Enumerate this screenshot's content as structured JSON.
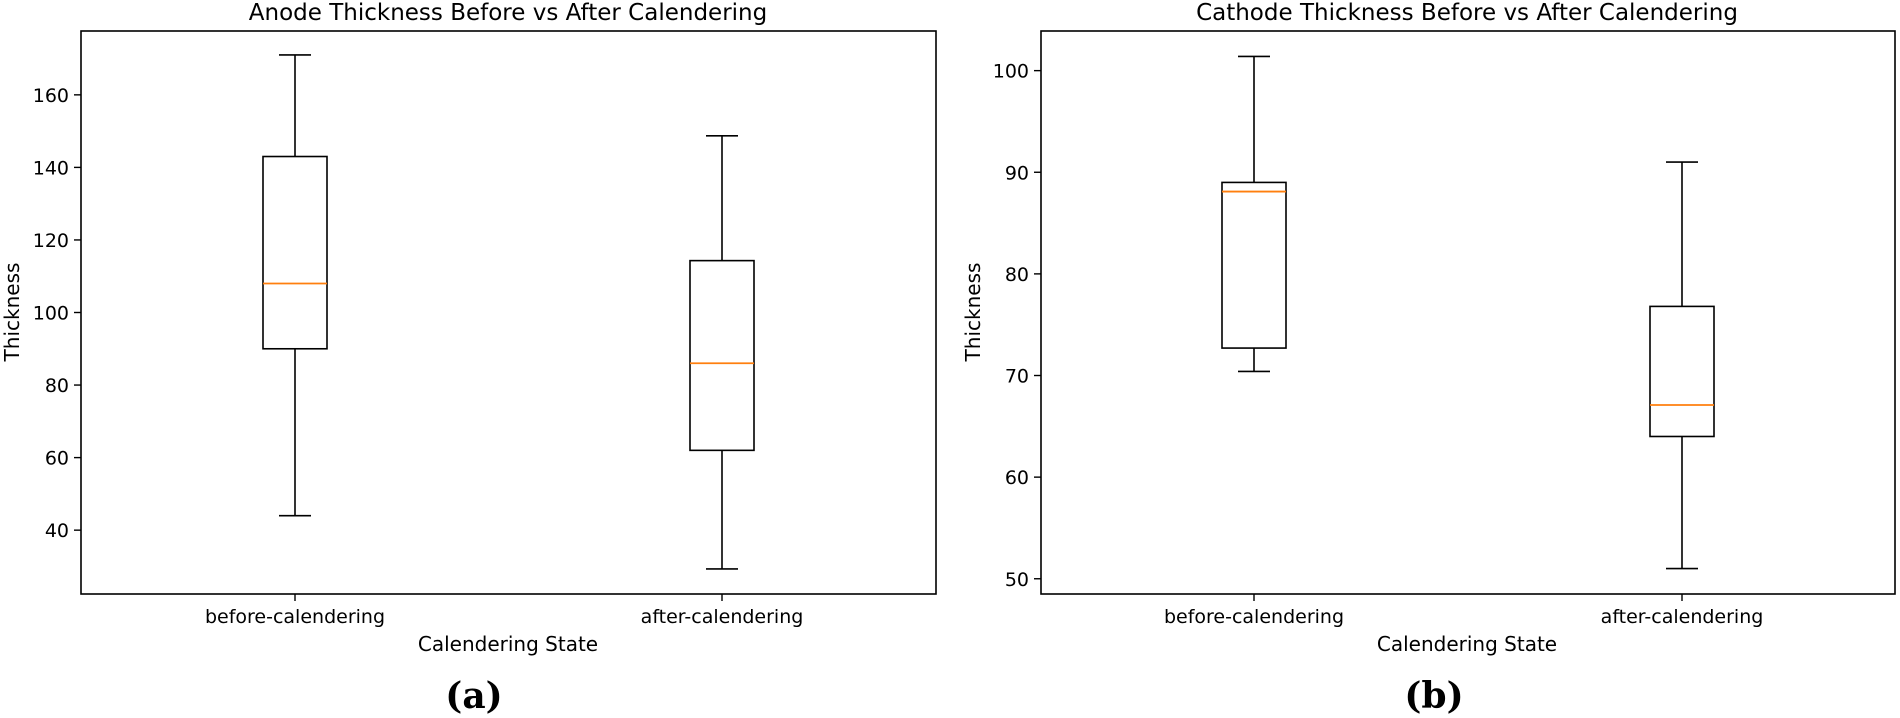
{
  "colors": {
    "box_edge": "#000000",
    "median": "#ff7f0e",
    "background": "#ffffff"
  },
  "chart_data": [
    {
      "type": "box",
      "title": "Anode Thickness Before vs After Calendering",
      "xlabel": "Calendering State",
      "ylabel": "Thickness",
      "ylim": [
        22.4,
        177.6
      ],
      "yticks": [
        40,
        60,
        80,
        100,
        120,
        140,
        160
      ],
      "grid": false,
      "caption": "(a)",
      "categories": [
        "before-calendering",
        "after-calendering"
      ],
      "boxes": [
        {
          "category": "before-calendering",
          "whisker_low": 44,
          "q1": 90,
          "median": 108,
          "q3": 143,
          "whisker_high": 171
        },
        {
          "category": "after-calendering",
          "whisker_low": 29.3,
          "q1": 62,
          "median": 86,
          "q3": 114.3,
          "whisker_high": 148.7
        }
      ]
    },
    {
      "type": "box",
      "title": "Cathode Thickness Before vs After Calendering",
      "xlabel": "Calendering State",
      "ylabel": "Thickness",
      "ylim": [
        48.5,
        103.9
      ],
      "yticks": [
        50,
        60,
        70,
        80,
        90,
        100
      ],
      "grid": false,
      "caption": "(b)",
      "categories": [
        "before-calendering",
        "after-calendering"
      ],
      "boxes": [
        {
          "category": "before-calendering",
          "whisker_low": 70.4,
          "q1": 72.7,
          "median": 88.1,
          "q3": 89,
          "whisker_high": 101.4
        },
        {
          "category": "after-calendering",
          "whisker_low": 51,
          "q1": 64,
          "median": 67.1,
          "q3": 76.8,
          "whisker_high": 91
        }
      ]
    }
  ]
}
